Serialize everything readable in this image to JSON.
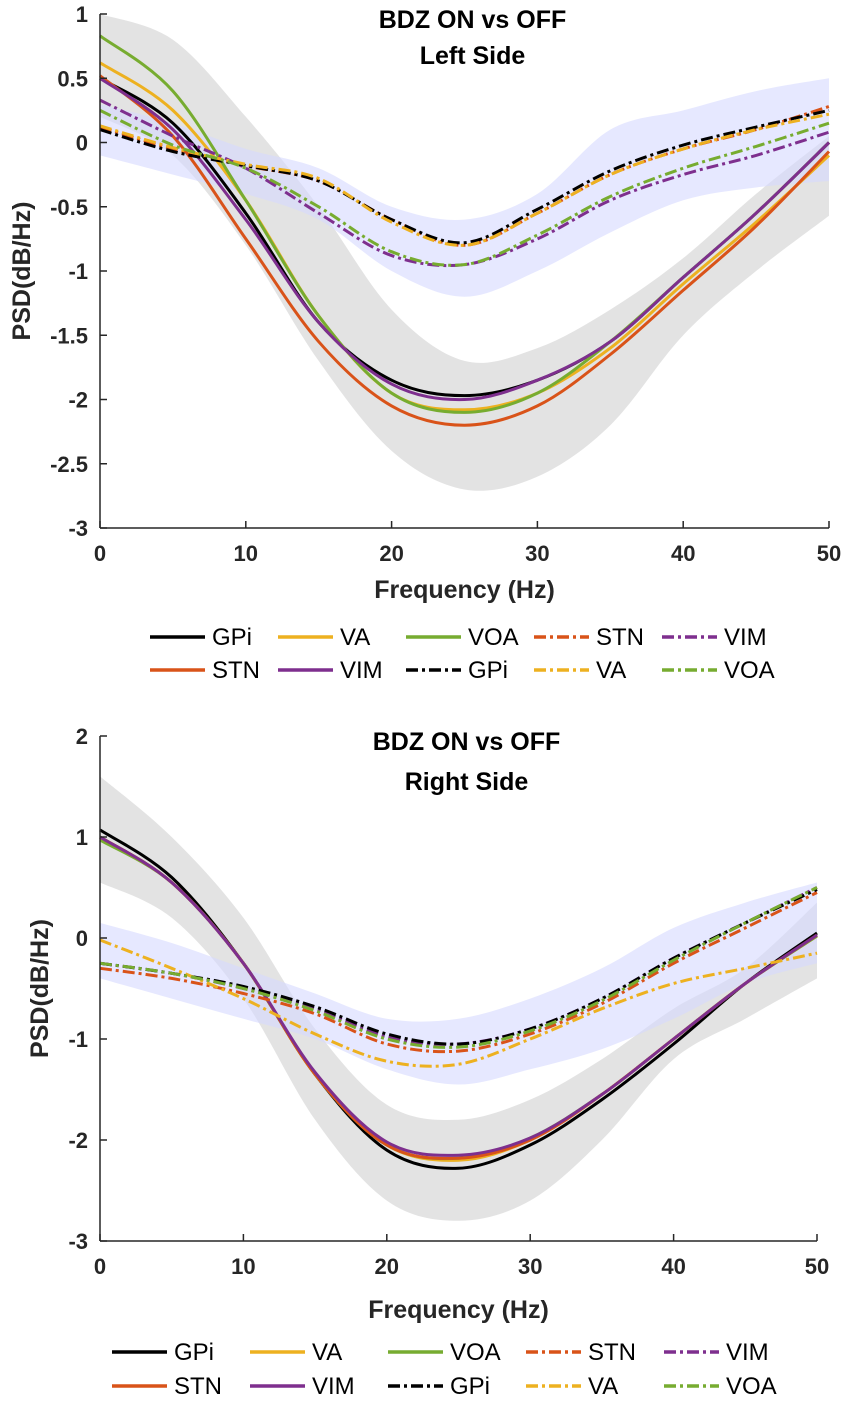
{
  "colors": {
    "GPi": "#000000",
    "VA": "#EDB120",
    "VOA": "#77AC30",
    "STN": "#D95319",
    "VIM": "#7E2F8E",
    "band_gray": "#d9d9d9",
    "band_blue": "#d6d8ff"
  },
  "legend": {
    "row1": [
      "GPi",
      "VA",
      "VOA",
      "STN",
      "VIM"
    ],
    "row2": [
      "STN",
      "VIM",
      "GPi",
      "VA",
      "VOA"
    ]
  },
  "chart_data": [
    {
      "type": "line",
      "title": [
        "BDZ ON vs OFF",
        "Left Side"
      ],
      "xlabel": "Frequency (Hz)",
      "ylabel": "PSD(dB/Hz)",
      "xlim": [
        0,
        50
      ],
      "ylim": [
        -3,
        1
      ],
      "xticks": [
        "0",
        "10",
        "20",
        "30",
        "40",
        "50"
      ],
      "yticks": [
        "1",
        "0.5",
        "0",
        "-0.5",
        "-1",
        "-1.5",
        "-2",
        "-2.5",
        "-3"
      ],
      "bands": [
        {
          "name": "solid-band",
          "color": "gray",
          "x": [
            0,
            5,
            10,
            15,
            20,
            25,
            30,
            35,
            40,
            45,
            50
          ],
          "upper": [
            1.0,
            0.8,
            0.2,
            -0.5,
            -1.3,
            -1.7,
            -1.6,
            -1.3,
            -0.9,
            -0.4,
            0.05
          ],
          "lower": [
            0.2,
            -0.1,
            -0.8,
            -1.7,
            -2.4,
            -2.7,
            -2.6,
            -2.2,
            -1.5,
            -1.0,
            -0.57
          ]
        },
        {
          "name": "dashed-band",
          "color": "blue",
          "x": [
            0,
            5,
            10,
            15,
            20,
            25,
            30,
            35,
            40,
            45,
            50
          ],
          "upper": [
            0.3,
            0.15,
            -0.05,
            -0.2,
            -0.5,
            -0.6,
            -0.4,
            0.1,
            0.25,
            0.4,
            0.5
          ],
          "lower": [
            -0.1,
            -0.25,
            -0.4,
            -0.6,
            -1.0,
            -1.2,
            -1.0,
            -0.7,
            -0.45,
            -0.35,
            -0.3
          ]
        }
      ],
      "series": [
        {
          "name": "GPi",
          "color": "GPi",
          "dash": "solid",
          "x": [
            0,
            5,
            10,
            15,
            20,
            25,
            30,
            35,
            40,
            45,
            50
          ],
          "values": [
            0.5,
            0.15,
            -0.55,
            -1.4,
            -1.85,
            -1.97,
            -1.85,
            -1.55,
            -1.05,
            -0.55,
            0.0
          ]
        },
        {
          "name": "VA",
          "color": "VA",
          "dash": "solid",
          "x": [
            0,
            5,
            10,
            15,
            20,
            25,
            30,
            35,
            40,
            45,
            50
          ],
          "values": [
            0.62,
            0.25,
            -0.45,
            -1.35,
            -1.95,
            -2.08,
            -1.95,
            -1.6,
            -1.1,
            -0.62,
            -0.1
          ]
        },
        {
          "name": "VOA",
          "color": "VOA",
          "dash": "solid",
          "x": [
            0,
            5,
            10,
            15,
            20,
            25,
            30,
            35,
            40,
            45,
            50
          ],
          "values": [
            0.83,
            0.4,
            -0.45,
            -1.35,
            -1.95,
            -2.1,
            -1.95,
            -1.55,
            -1.05,
            -0.55,
            0.0
          ]
        },
        {
          "name": "STN",
          "color": "STN",
          "dash": "solid",
          "x": [
            0,
            5,
            10,
            15,
            20,
            25,
            30,
            35,
            40,
            45,
            50
          ],
          "values": [
            0.52,
            0.05,
            -0.75,
            -1.55,
            -2.05,
            -2.2,
            -2.05,
            -1.65,
            -1.15,
            -0.65,
            -0.07
          ]
        },
        {
          "name": "VIM",
          "color": "VIM",
          "dash": "solid",
          "x": [
            0,
            5,
            10,
            15,
            20,
            25,
            30,
            35,
            40,
            45,
            50
          ],
          "values": [
            0.5,
            0.1,
            -0.6,
            -1.4,
            -1.88,
            -2.0,
            -1.85,
            -1.55,
            -1.05,
            -0.55,
            0.0
          ]
        },
        {
          "name": "STN",
          "color": "STN",
          "dash": "dashdot",
          "x": [
            0,
            5,
            10,
            15,
            20,
            25,
            30,
            35,
            40,
            45,
            50
          ],
          "values": [
            0.12,
            -0.05,
            -0.18,
            -0.3,
            -0.6,
            -0.8,
            -0.55,
            -0.25,
            -0.05,
            0.1,
            0.28
          ]
        },
        {
          "name": "VIM",
          "color": "VIM",
          "dash": "dashdot",
          "x": [
            0,
            5,
            10,
            15,
            20,
            25,
            30,
            35,
            40,
            45,
            50
          ],
          "values": [
            0.33,
            0.05,
            -0.2,
            -0.55,
            -0.88,
            -0.95,
            -0.75,
            -0.45,
            -0.25,
            -0.1,
            0.08
          ]
        },
        {
          "name": "GPi",
          "color": "GPi",
          "dash": "dashdot",
          "x": [
            0,
            5,
            10,
            15,
            20,
            25,
            30,
            35,
            40,
            45,
            50
          ],
          "values": [
            0.1,
            -0.07,
            -0.18,
            -0.3,
            -0.6,
            -0.78,
            -0.52,
            -0.22,
            -0.02,
            0.12,
            0.25
          ]
        },
        {
          "name": "VA",
          "color": "VA",
          "dash": "dashdot",
          "x": [
            0,
            5,
            10,
            15,
            20,
            25,
            30,
            35,
            40,
            45,
            50
          ],
          "values": [
            0.13,
            -0.04,
            -0.17,
            -0.28,
            -0.62,
            -0.8,
            -0.55,
            -0.25,
            -0.05,
            0.1,
            0.22
          ]
        },
        {
          "name": "VOA",
          "color": "VOA",
          "dash": "dashdot",
          "x": [
            0,
            5,
            10,
            15,
            20,
            25,
            30,
            35,
            40,
            45,
            50
          ],
          "values": [
            0.25,
            -0.02,
            -0.2,
            -0.5,
            -0.85,
            -0.95,
            -0.72,
            -0.42,
            -0.2,
            -0.03,
            0.15
          ]
        }
      ]
    },
    {
      "type": "line",
      "title": [
        "BDZ ON vs OFF",
        "Right Side"
      ],
      "xlabel": "Frequency (Hz)",
      "ylabel": "PSD(dB/Hz)",
      "xlim": [
        0,
        50
      ],
      "ylim": [
        -3,
        2
      ],
      "xticks": [
        "0",
        "10",
        "20",
        "30",
        "40",
        "50"
      ],
      "yticks": [
        "2",
        "1",
        "0",
        "-1",
        "-2",
        "-3"
      ],
      "bands": [
        {
          "name": "solid-band",
          "color": "gray",
          "x": [
            0,
            5,
            10,
            15,
            20,
            25,
            30,
            35,
            40,
            45,
            50
          ],
          "upper": [
            1.6,
            1.0,
            0.2,
            -0.9,
            -1.65,
            -1.8,
            -1.6,
            -1.2,
            -0.7,
            -0.3,
            0.35
          ],
          "lower": [
            0.55,
            0.2,
            -0.6,
            -1.8,
            -2.6,
            -2.8,
            -2.6,
            -2.0,
            -1.2,
            -0.8,
            -0.4
          ]
        },
        {
          "name": "dashed-band",
          "color": "blue",
          "x": [
            0,
            5,
            10,
            15,
            20,
            25,
            30,
            35,
            40,
            45,
            50
          ],
          "upper": [
            0.15,
            -0.05,
            -0.3,
            -0.55,
            -0.8,
            -0.8,
            -0.6,
            -0.3,
            0.1,
            0.35,
            0.55
          ],
          "lower": [
            -0.4,
            -0.6,
            -0.8,
            -1.0,
            -1.3,
            -1.45,
            -1.3,
            -1.1,
            -0.8,
            -0.45,
            -0.25
          ]
        }
      ],
      "series": [
        {
          "name": "GPi",
          "color": "GPi",
          "dash": "solid",
          "x": [
            0,
            5,
            10,
            15,
            20,
            25,
            30,
            35,
            40,
            45,
            50
          ],
          "values": [
            1.07,
            0.6,
            -0.25,
            -1.35,
            -2.1,
            -2.28,
            -2.05,
            -1.6,
            -1.05,
            -0.45,
            0.05
          ]
        },
        {
          "name": "VA",
          "color": "VA",
          "dash": "solid",
          "x": [
            0,
            5,
            10,
            15,
            20,
            25,
            30,
            35,
            40,
            45,
            50
          ],
          "values": [
            1.0,
            0.55,
            -0.25,
            -1.35,
            -2.05,
            -2.2,
            -2.0,
            -1.55,
            -1.0,
            -0.45,
            0.02
          ]
        },
        {
          "name": "VOA",
          "color": "VOA",
          "dash": "solid",
          "x": [
            0,
            5,
            10,
            15,
            20,
            25,
            30,
            35,
            40,
            45,
            50
          ],
          "values": [
            0.97,
            0.55,
            -0.25,
            -1.35,
            -2.05,
            -2.18,
            -1.98,
            -1.55,
            -1.0,
            -0.45,
            0.02
          ]
        },
        {
          "name": "STN",
          "color": "STN",
          "dash": "solid",
          "x": [
            0,
            5,
            10,
            15,
            20,
            25,
            30,
            35,
            40,
            45,
            50
          ],
          "values": [
            1.0,
            0.55,
            -0.25,
            -1.35,
            -2.05,
            -2.18,
            -2.0,
            -1.55,
            -1.0,
            -0.45,
            0.03
          ]
        },
        {
          "name": "VIM",
          "color": "VIM",
          "dash": "solid",
          "x": [
            0,
            5,
            10,
            15,
            20,
            25,
            30,
            35,
            40,
            45,
            50
          ],
          "values": [
            1.0,
            0.55,
            -0.25,
            -1.33,
            -2.02,
            -2.15,
            -1.98,
            -1.55,
            -1.0,
            -0.45,
            0.03
          ]
        },
        {
          "name": "STN",
          "color": "STN",
          "dash": "dashdot",
          "x": [
            0,
            5,
            10,
            15,
            20,
            25,
            30,
            35,
            40,
            45,
            50
          ],
          "values": [
            -0.3,
            -0.4,
            -0.55,
            -0.75,
            -1.05,
            -1.12,
            -0.95,
            -0.65,
            -0.25,
            0.1,
            0.45
          ]
        },
        {
          "name": "VIM",
          "color": "VIM",
          "dash": "dashdot",
          "x": [
            0,
            5,
            10,
            15,
            20,
            25,
            30,
            35,
            40,
            45,
            50
          ],
          "values": [
            -0.25,
            -0.35,
            -0.5,
            -0.7,
            -0.98,
            -1.05,
            -0.9,
            -0.6,
            -0.2,
            0.15,
            0.5
          ]
        },
        {
          "name": "GPi",
          "color": "GPi",
          "dash": "dashdot",
          "x": [
            0,
            5,
            10,
            15,
            20,
            25,
            30,
            35,
            40,
            45,
            50
          ],
          "values": [
            -0.25,
            -0.35,
            -0.48,
            -0.68,
            -0.95,
            -1.05,
            -0.9,
            -0.6,
            -0.2,
            0.15,
            0.48
          ]
        },
        {
          "name": "VA",
          "color": "VA",
          "dash": "dashdot",
          "x": [
            0,
            5,
            10,
            15,
            20,
            25,
            30,
            35,
            40,
            45,
            50
          ],
          "values": [
            -0.02,
            -0.3,
            -0.6,
            -0.95,
            -1.22,
            -1.25,
            -1.0,
            -0.7,
            -0.45,
            -0.3,
            -0.15
          ]
        },
        {
          "name": "VOA",
          "color": "VOA",
          "dash": "dashdot",
          "x": [
            0,
            5,
            10,
            15,
            20,
            25,
            30,
            35,
            40,
            45,
            50
          ],
          "values": [
            -0.25,
            -0.35,
            -0.5,
            -0.72,
            -1.0,
            -1.08,
            -0.92,
            -0.62,
            -0.22,
            0.15,
            0.5
          ]
        }
      ]
    }
  ]
}
